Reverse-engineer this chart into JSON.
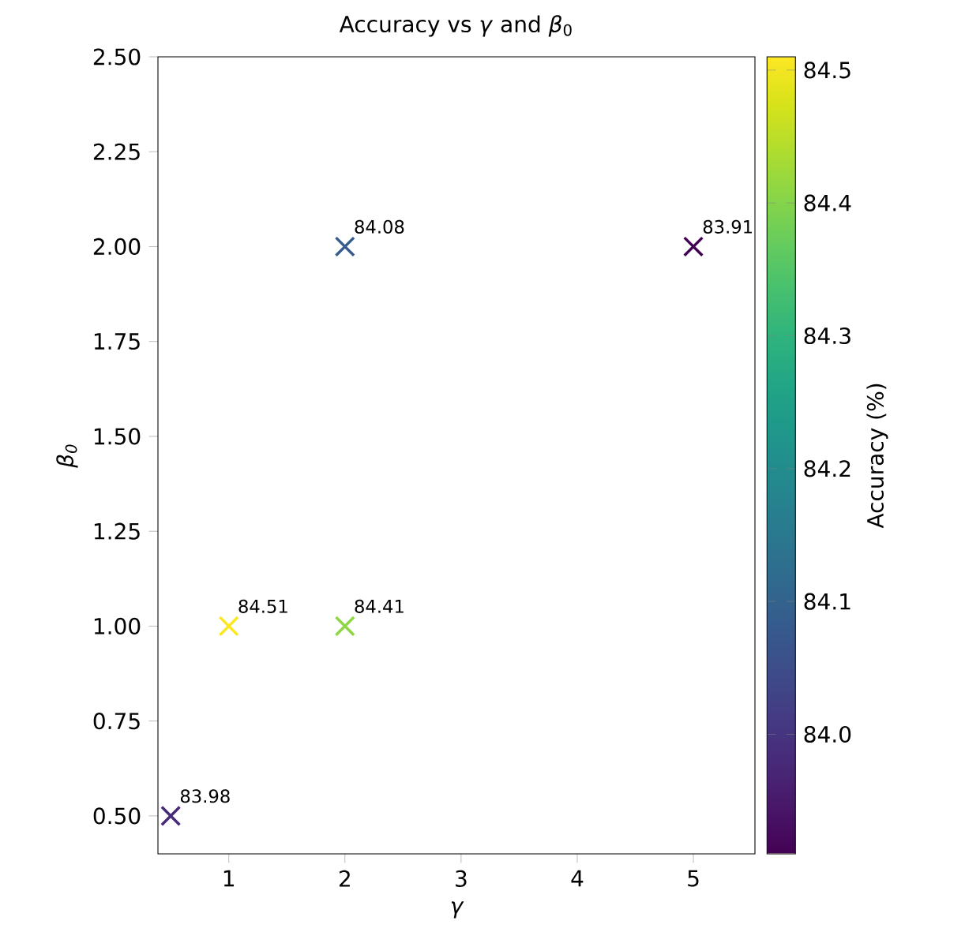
{
  "chart_data": {
    "type": "scatter",
    "title": "Accuracy vs *γ* and *β*$_{0}$",
    "xlabel": "γ",
    "ylabel": "β$_{0}$",
    "clabel": "Accuracy (%)",
    "x": [
      0.5,
      1,
      2,
      2,
      5
    ],
    "values": [
      0.5,
      1,
      1,
      2,
      2
    ],
    "cvalues": [
      83.98,
      84.51,
      84.41,
      84.08,
      83.91
    ],
    "marker": "cross",
    "grid": false,
    "xlim": [
      0.39,
      5.53
    ],
    "xticks": [
      1,
      2,
      3,
      4,
      5
    ],
    "ylim": [
      0.4,
      2.5
    ],
    "yticks": [
      {
        "value": 0.5,
        "label": "0.50"
      },
      {
        "value": 0.75,
        "label": "0.75"
      },
      {
        "value": 1.0,
        "label": "1.00"
      },
      {
        "value": 1.25,
        "label": "1.25"
      },
      {
        "value": 1.5,
        "label": "1.50"
      },
      {
        "value": 1.75,
        "label": "1.75"
      },
      {
        "value": 2.0,
        "label": "2.00"
      },
      {
        "value": 2.25,
        "label": "2.25"
      },
      {
        "value": 2.5,
        "label": "2.50"
      }
    ],
    "clim": [
      83.91,
      84.51
    ],
    "cticks": [
      {
        "value": 84.0,
        "label": "84.0"
      },
      {
        "value": 84.1,
        "label": "84.1"
      },
      {
        "value": 84.2,
        "label": "84.2"
      },
      {
        "value": 84.3,
        "label": "84.3"
      },
      {
        "value": 84.4,
        "label": "84.4"
      },
      {
        "value": 84.5,
        "label": "84.5"
      }
    ],
    "annotations": [
      {
        "text": "83.98",
        "x": 0.5,
        "y": 0.5
      },
      {
        "text": "84.51",
        "x": 1,
        "y": 1
      },
      {
        "text": "84.41",
        "x": 2,
        "y": 1
      },
      {
        "text": "84.08",
        "x": 2,
        "y": 2
      },
      {
        "text": "83.91",
        "x": 5,
        "y": 2
      }
    ]
  }
}
